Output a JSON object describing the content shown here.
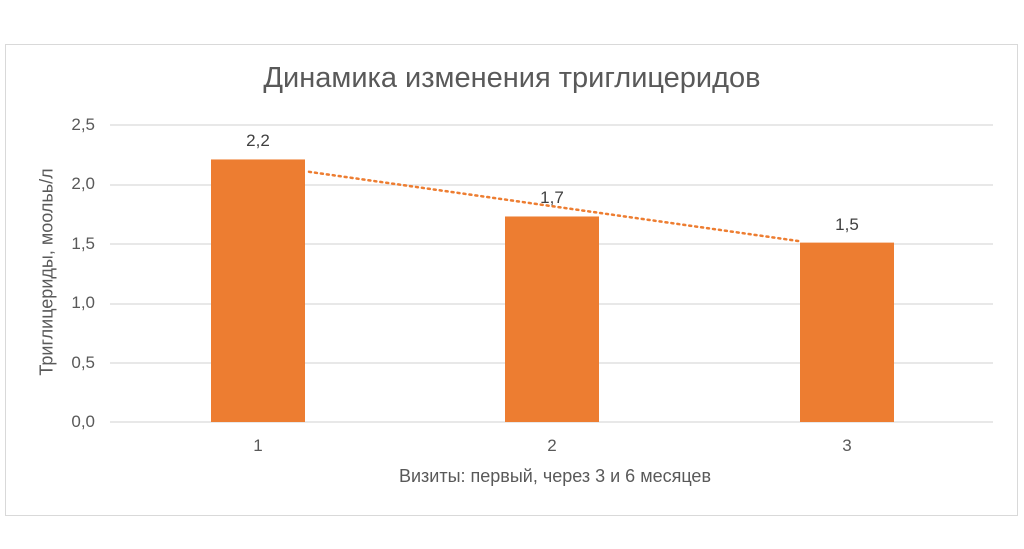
{
  "chart_data": {
    "type": "bar",
    "title": "Динамика изменения триглицеридов",
    "xlabel": "Визиты: первый,  через 3 и 6 месяцев",
    "ylabel": "Триглицериды,  моольь/л",
    "categories": [
      "1",
      "2",
      "3"
    ],
    "values": [
      2.21,
      1.73,
      1.51
    ],
    "data_labels": [
      "2,2",
      "1,7",
      "1,5"
    ],
    "ylim": [
      0,
      2.5
    ],
    "yticks": [
      "0,0",
      "0,5",
      "1,0",
      "1,5",
      "2,0",
      "2,5"
    ],
    "grid": true,
    "legend": "none",
    "trendline": {
      "type": "linear",
      "style": "dotted",
      "color": "#ED7D31"
    },
    "bar_color": "#ED7D31"
  }
}
